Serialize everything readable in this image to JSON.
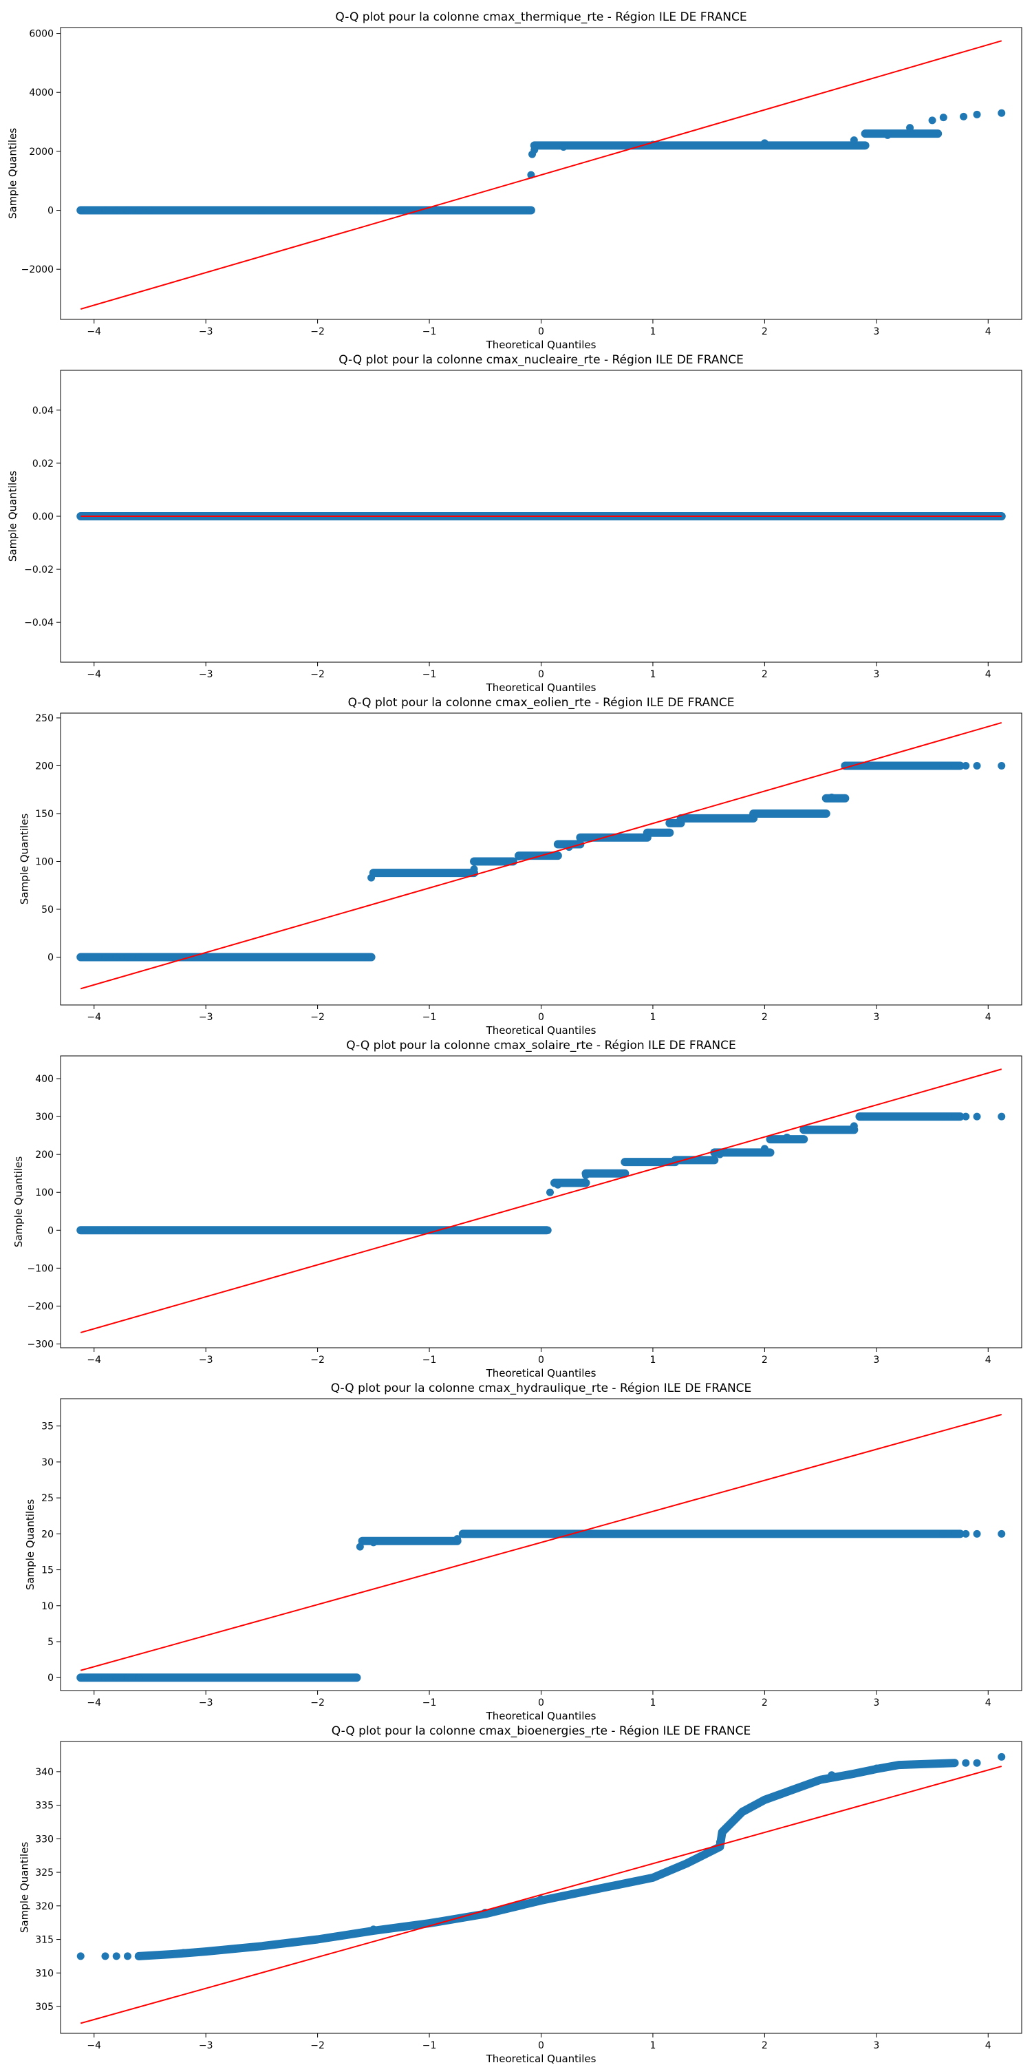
{
  "chart_data": [
    {
      "type": "scatter",
      "title": "Q-Q plot pour la colonne cmax_thermique_rte - Région ILE DE FRANCE",
      "xlabel": "Theoretical Quantiles",
      "ylabel": "Sample Quantiles",
      "xlim": [
        -4.3,
        4.3
      ],
      "ylim": [
        -3700,
        6200
      ],
      "xticks": [
        -4,
        -3,
        -2,
        -1,
        0,
        1,
        2,
        3,
        4
      ],
      "yticks": [
        -2000,
        0,
        2000,
        4000,
        6000
      ],
      "ytick_labels": [
        "−2000",
        "0",
        "2000",
        "4000",
        "6000"
      ],
      "marker_color": "#1f77b4",
      "line_color": "#ff0000",
      "points": [
        [
          -4.12,
          0
        ],
        [
          -3.9,
          0
        ],
        [
          -3.8,
          0
        ],
        [
          -3.7,
          0
        ],
        [
          -3.6,
          0
        ],
        [
          -3.5,
          0
        ],
        [
          -2.5,
          0
        ],
        [
          -1.5,
          0
        ],
        [
          -0.1,
          0
        ],
        [
          -0.09,
          1200
        ],
        [
          -0.08,
          1900
        ],
        [
          -0.06,
          2050
        ],
        [
          0.2,
          2150
        ],
        [
          1,
          2230
        ],
        [
          2,
          2280
        ],
        [
          2.8,
          2380
        ],
        [
          3.1,
          2550
        ],
        [
          3.3,
          2800
        ],
        [
          3.5,
          3050
        ],
        [
          3.6,
          3150
        ],
        [
          3.78,
          3180
        ],
        [
          3.9,
          3250
        ],
        [
          4.12,
          3300
        ]
      ],
      "segments": [
        [
          -4.12,
          -0.09,
          0
        ],
        [
          -0.06,
          2.9,
          2200
        ],
        [
          2.9,
          3.55,
          2600
        ]
      ],
      "ref_line": [
        [
          -4.12,
          -3350
        ],
        [
          4.12,
          5750
        ]
      ]
    },
    {
      "type": "scatter",
      "title": "Q-Q plot pour la colonne cmax_nucleaire_rte - Région ILE DE FRANCE",
      "xlabel": "Theoretical Quantiles",
      "ylabel": "Sample Quantiles",
      "xlim": [
        -4.3,
        4.3
      ],
      "ylim": [
        -0.055,
        0.055
      ],
      "xticks": [
        -4,
        -3,
        -2,
        -1,
        0,
        1,
        2,
        3,
        4
      ],
      "yticks": [
        -0.04,
        -0.02,
        0,
        0.02,
        0.04
      ],
      "ytick_labels": [
        "−0.04",
        "−0.02",
        "0.00",
        "0.02",
        "0.04"
      ],
      "marker_color": "#1f77b4",
      "line_color": "#ff0000",
      "points": [
        [
          -4.12,
          0
        ],
        [
          -3.9,
          0
        ],
        [
          -3.8,
          0
        ],
        [
          -3.7,
          0
        ],
        [
          -3.6,
          0
        ],
        [
          3.6,
          0
        ],
        [
          3.7,
          0
        ],
        [
          3.8,
          0
        ],
        [
          3.9,
          0
        ],
        [
          4.12,
          0
        ]
      ],
      "segments": [
        [
          -4.12,
          4.12,
          0
        ]
      ],
      "ref_line": [
        [
          -4.12,
          0
        ],
        [
          4.12,
          0
        ]
      ]
    },
    {
      "type": "scatter",
      "title": "Q-Q plot pour la colonne cmax_eolien_rte - Région ILE DE FRANCE",
      "xlabel": "Theoretical Quantiles",
      "ylabel": "Sample Quantiles",
      "xlim": [
        -4.3,
        4.3
      ],
      "ylim": [
        -50,
        255
      ],
      "xticks": [
        -4,
        -3,
        -2,
        -1,
        0,
        1,
        2,
        3,
        4
      ],
      "yticks": [
        0,
        50,
        100,
        150,
        200,
        250
      ],
      "ytick_labels": [
        "0",
        "50",
        "100",
        "150",
        "200",
        "250"
      ],
      "marker_color": "#1f77b4",
      "line_color": "#ff0000",
      "points": [
        [
          -4.12,
          0
        ],
        [
          -3.9,
          0
        ],
        [
          -3.8,
          0
        ],
        [
          -3.7,
          0
        ],
        [
          -3.6,
          0
        ],
        [
          -1.52,
          83
        ],
        [
          -0.6,
          92
        ],
        [
          -0.2,
          105
        ],
        [
          0.25,
          115
        ],
        [
          0.55,
          125
        ],
        [
          1.2,
          140
        ],
        [
          2.6,
          167
        ],
        [
          2.75,
          200
        ],
        [
          3.6,
          200
        ],
        [
          3.7,
          200
        ],
        [
          3.8,
          200
        ],
        [
          3.9,
          200
        ],
        [
          4.12,
          200
        ]
      ],
      "segments": [
        [
          -4.12,
          -1.52,
          0
        ],
        [
          -1.5,
          -0.6,
          88
        ],
        [
          -0.6,
          -0.25,
          100
        ],
        [
          -0.2,
          0.15,
          106
        ],
        [
          0.15,
          0.35,
          118
        ],
        [
          0.35,
          0.95,
          125
        ],
        [
          0.95,
          1.15,
          130
        ],
        [
          1.15,
          1.25,
          140
        ],
        [
          1.25,
          1.9,
          145
        ],
        [
          1.9,
          2.55,
          150
        ],
        [
          2.55,
          2.72,
          166
        ],
        [
          2.72,
          3.75,
          200
        ]
      ],
      "ref_line": [
        [
          -4.12,
          -33
        ],
        [
          4.12,
          245
        ]
      ]
    },
    {
      "type": "scatter",
      "title": "Q-Q plot pour la colonne cmax_solaire_rte - Région ILE DE FRANCE",
      "xlabel": "Theoretical Quantiles",
      "ylabel": "Sample Quantiles",
      "xlim": [
        -4.3,
        4.3
      ],
      "ylim": [
        -310,
        460
      ],
      "xticks": [
        -4,
        -3,
        -2,
        -1,
        0,
        1,
        2,
        3,
        4
      ],
      "yticks": [
        -300,
        -200,
        -100,
        0,
        100,
        200,
        300,
        400
      ],
      "ytick_labels": [
        "−300",
        "−200",
        "−100",
        "0",
        "100",
        "200",
        "300",
        "400"
      ],
      "marker_color": "#1f77b4",
      "line_color": "#ff0000",
      "points": [
        [
          -4.12,
          0
        ],
        [
          -3.9,
          0
        ],
        [
          -3.8,
          0
        ],
        [
          -3.7,
          0
        ],
        [
          -3.6,
          0
        ],
        [
          0.06,
          0
        ],
        [
          0.08,
          100
        ],
        [
          0.15,
          120
        ],
        [
          0.4,
          145
        ],
        [
          0.9,
          180
        ],
        [
          1.6,
          200
        ],
        [
          2.0,
          215
        ],
        [
          2.2,
          245
        ],
        [
          2.8,
          275
        ],
        [
          2.85,
          300
        ],
        [
          3.6,
          300
        ],
        [
          3.7,
          300
        ],
        [
          3.8,
          300
        ],
        [
          3.9,
          300
        ],
        [
          4.12,
          300
        ]
      ],
      "segments": [
        [
          -4.12,
          0.05,
          0
        ],
        [
          0.12,
          0.4,
          125
        ],
        [
          0.4,
          0.75,
          150
        ],
        [
          0.75,
          1.2,
          180
        ],
        [
          1.2,
          1.55,
          185
        ],
        [
          1.55,
          2.05,
          205
        ],
        [
          2.05,
          2.35,
          240
        ],
        [
          2.35,
          2.8,
          265
        ],
        [
          2.85,
          3.75,
          300
        ]
      ],
      "ref_line": [
        [
          -4.12,
          -270
        ],
        [
          4.12,
          425
        ]
      ]
    },
    {
      "type": "scatter",
      "title": "Q-Q plot pour la colonne cmax_hydraulique_rte - Région ILE DE FRANCE",
      "xlabel": "Theoretical Quantiles",
      "ylabel": "Sample Quantiles",
      "xlim": [
        -4.3,
        4.3
      ],
      "ylim": [
        -1.8,
        38.8
      ],
      "xticks": [
        -4,
        -3,
        -2,
        -1,
        0,
        1,
        2,
        3,
        4
      ],
      "yticks": [
        0,
        5,
        10,
        15,
        20,
        25,
        30,
        35
      ],
      "ytick_labels": [
        "0",
        "5",
        "10",
        "15",
        "20",
        "25",
        "30",
        "35"
      ],
      "marker_color": "#1f77b4",
      "line_color": "#ff0000",
      "points": [
        [
          -4.12,
          0
        ],
        [
          -3.9,
          0
        ],
        [
          -3.8,
          0
        ],
        [
          -3.7,
          0
        ],
        [
          -3.6,
          0
        ],
        [
          -1.65,
          0
        ],
        [
          -1.62,
          18.2
        ],
        [
          -1.5,
          18.8
        ],
        [
          -0.75,
          19.3
        ],
        [
          -0.7,
          20
        ],
        [
          3.6,
          20
        ],
        [
          3.7,
          20
        ],
        [
          3.8,
          20
        ],
        [
          3.9,
          20
        ],
        [
          4.12,
          20
        ]
      ],
      "segments": [
        [
          -4.12,
          -1.65,
          0
        ],
        [
          -1.6,
          -0.75,
          19
        ],
        [
          -0.7,
          3.75,
          20
        ]
      ],
      "ref_line": [
        [
          -4.12,
          1
        ],
        [
          4.12,
          36.6
        ]
      ]
    },
    {
      "type": "scatter",
      "title": "Q-Q plot pour la colonne cmax_bioenergies_rte - Région ILE DE FRANCE",
      "xlabel": "Theoretical Quantiles",
      "ylabel": "Sample Quantiles",
      "xlim": [
        -4.3,
        4.3
      ],
      "ylim": [
        301,
        344.5
      ],
      "xticks": [
        -4,
        -3,
        -2,
        -1,
        0,
        1,
        2,
        3,
        4
      ],
      "yticks": [
        305,
        310,
        315,
        320,
        325,
        330,
        335,
        340
      ],
      "ytick_labels": [
        "305",
        "310",
        "315",
        "320",
        "325",
        "330",
        "335",
        "340"
      ],
      "marker_color": "#1f77b4",
      "line_color": "#ff0000",
      "points": [
        [
          -4.12,
          312.5
        ],
        [
          -3.9,
          312.5
        ],
        [
          -3.8,
          312.5
        ],
        [
          -3.7,
          312.5
        ],
        [
          -3.6,
          312.5
        ],
        [
          -3.2,
          313
        ],
        [
          -2.5,
          314
        ],
        [
          -1.5,
          316.5
        ],
        [
          -0.5,
          319
        ],
        [
          0,
          321
        ],
        [
          0.8,
          323.5
        ],
        [
          1.5,
          328
        ],
        [
          1.6,
          329.5
        ],
        [
          1.62,
          331
        ],
        [
          1.8,
          334
        ],
        [
          2.2,
          337
        ],
        [
          2.6,
          339.5
        ],
        [
          3.0,
          340.5
        ],
        [
          3.6,
          341.2
        ],
        [
          3.8,
          341.3
        ],
        [
          3.9,
          341.3
        ],
        [
          4.12,
          342.2
        ]
      ],
      "segments": [],
      "curve": [
        [
          -3.6,
          312.5
        ],
        [
          -3.3,
          312.8
        ],
        [
          -3.0,
          313.2
        ],
        [
          -2.5,
          314
        ],
        [
          -2.0,
          315
        ],
        [
          -1.5,
          316.3
        ],
        [
          -1.0,
          317.4
        ],
        [
          -0.5,
          318.8
        ],
        [
          0,
          320.8
        ],
        [
          0.5,
          322.5
        ],
        [
          1.0,
          324.2
        ],
        [
          1.3,
          326.3
        ],
        [
          1.6,
          328.8
        ],
        [
          1.62,
          331
        ],
        [
          1.8,
          334
        ],
        [
          2.0,
          335.8
        ],
        [
          2.2,
          337
        ],
        [
          2.5,
          338.8
        ],
        [
          2.8,
          339.7
        ],
        [
          3.0,
          340.4
        ],
        [
          3.2,
          341
        ],
        [
          3.7,
          341.3
        ]
      ],
      "ref_line": [
        [
          -4.12,
          302.5
        ],
        [
          4.12,
          340.8
        ]
      ]
    }
  ]
}
